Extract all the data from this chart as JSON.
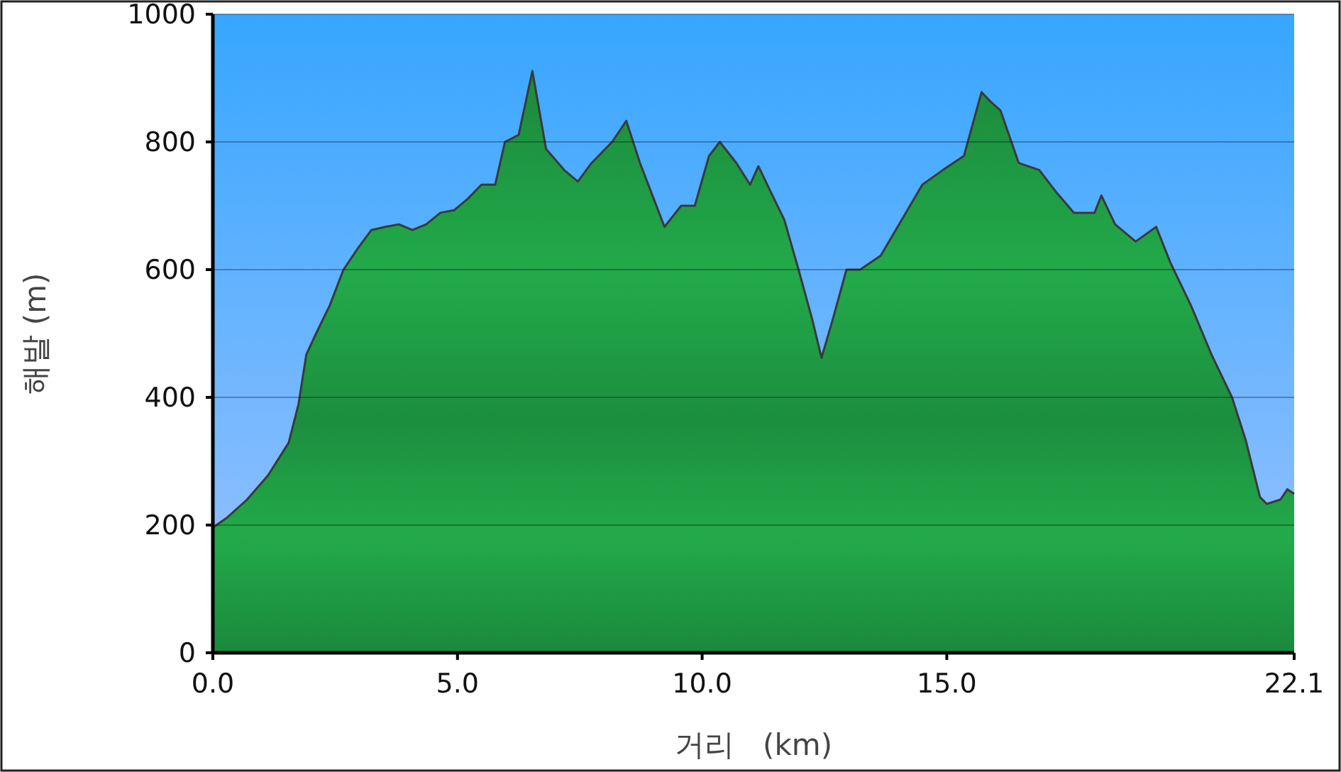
{
  "chart_data": {
    "type": "area",
    "xlabel": "거리   (km)",
    "ylabel": "해발 (m)",
    "x": [
      0,
      0.28,
      0.7,
      1.13,
      1.55,
      1.75,
      1.91,
      2.11,
      2.39,
      2.67,
      2.96,
      3.24,
      3.52,
      3.8,
      4.08,
      4.36,
      4.65,
      4.93,
      5.21,
      5.49,
      5.77,
      5.97,
      6.25,
      6.53,
      6.81,
      7.18,
      7.46,
      7.74,
      8.16,
      8.45,
      8.73,
      9.01,
      9.23,
      9.57,
      9.85,
      10.14,
      10.36,
      10.7,
      10.98,
      11.15,
      11.4,
      11.68,
      11.97,
      12.25,
      12.44,
      12.67,
      12.95,
      13.23,
      13.65,
      14.08,
      14.5,
      14.92,
      15.35,
      15.71,
      15.91,
      16.1,
      16.47,
      16.89,
      17.23,
      17.6,
      18.02,
      18.16,
      18.44,
      18.86,
      19.28,
      19.57,
      19.99,
      20.41,
      20.83,
      21.11,
      21.4,
      21.54,
      21.82,
      21.96,
      22.1
    ],
    "series": [
      {
        "color": "#22aa4a",
        "values": [
          196,
          211,
          240,
          278,
          329,
          389,
          467,
          500,
          544,
          600,
          633,
          662,
          667,
          671,
          662,
          671,
          689,
          693,
          711,
          733,
          733,
          800,
          811,
          911,
          789,
          756,
          738,
          767,
          800,
          833,
          767,
          711,
          667,
          700,
          700,
          778,
          800,
          767,
          733,
          762,
          722,
          678,
          600,
          522,
          462,
          522,
          600,
          600,
          622,
          678,
          733,
          756,
          778,
          878,
          862,
          849,
          767,
          756,
          722,
          689,
          689,
          716,
          671,
          644,
          667,
          611,
          544,
          467,
          400,
          333,
          244,
          233,
          240,
          256,
          249
        ]
      }
    ],
    "xlim": [
      0,
      22.1
    ],
    "xticks": [
      {
        "value": 0,
        "label": "0.0"
      },
      {
        "value": 5,
        "label": "5.0"
      },
      {
        "value": 10,
        "label": "10.0"
      },
      {
        "value": 15,
        "label": "15.0"
      },
      {
        "value": 22.1,
        "label": "22.1"
      }
    ],
    "ylim": [
      0,
      1000
    ],
    "yticks": [
      0,
      200,
      400,
      600,
      800,
      1000
    ],
    "grid": "y"
  }
}
